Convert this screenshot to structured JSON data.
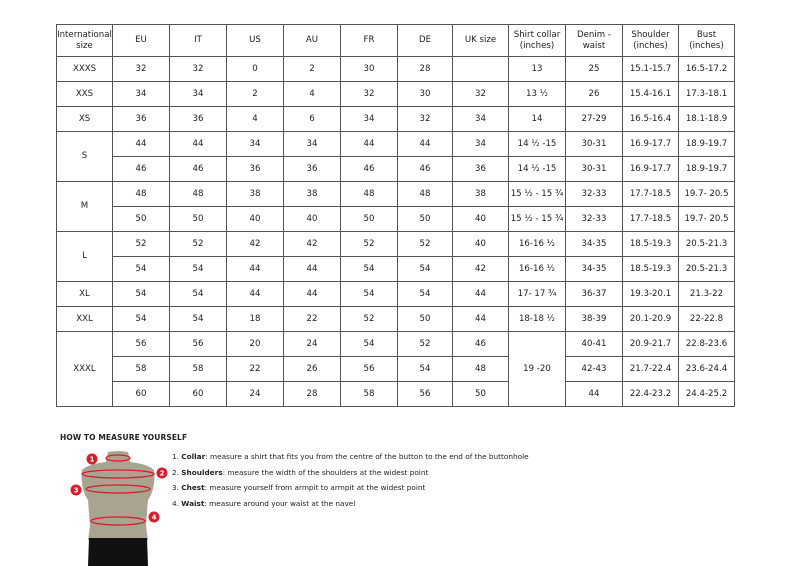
{
  "headers": [
    "International size",
    "EU",
    "IT",
    "US",
    "AU",
    "FR",
    "DE",
    "UK size",
    "Shirt collar (inches)",
    "Denim - waist",
    "Shoulder (inches)",
    "Bust (inches)"
  ],
  "groups": [
    {
      "size": "XXXS",
      "rows": [
        [
          "32",
          "32",
          "0",
          "2",
          "30",
          "28",
          "",
          "13",
          "25",
          "15.1-15.7",
          "16.5-17.2"
        ]
      ]
    },
    {
      "size": "XXS",
      "rows": [
        [
          "34",
          "34",
          "2",
          "4",
          "32",
          "30",
          "32",
          "13 ½",
          "26",
          "15.4-16.1",
          "17.3-18.1"
        ]
      ]
    },
    {
      "size": "XS",
      "rows": [
        [
          "36",
          "36",
          "4",
          "6",
          "34",
          "32",
          "34",
          "14",
          "27-29",
          "16.5-16.4",
          "18.1-18.9"
        ]
      ]
    },
    {
      "size": "S",
      "rows": [
        [
          "44",
          "44",
          "34",
          "34",
          "44",
          "44",
          "34",
          "14 ½ -15",
          "30-31",
          "16.9-17.7",
          "18.9-19.7"
        ],
        [
          "46",
          "46",
          "36",
          "36",
          "46",
          "46",
          "36",
          "14 ½ -15",
          "30-31",
          "16.9-17.7",
          "18.9-19.7"
        ]
      ]
    },
    {
      "size": "M",
      "rows": [
        [
          "48",
          "48",
          "38",
          "38",
          "48",
          "48",
          "38",
          "15 ½ - 15 ¾",
          "32-33",
          "17.7-18.5",
          "19.7- 20.5"
        ],
        [
          "50",
          "50",
          "40",
          "40",
          "50",
          "50",
          "40",
          "15 ½ - 15 ¾",
          "32-33",
          "17.7-18.5",
          "19.7- 20.5"
        ]
      ]
    },
    {
      "size": "L",
      "rows": [
        [
          "52",
          "52",
          "42",
          "42",
          "52",
          "52",
          "40",
          "16-16 ½",
          "34-35",
          "18.5-19.3",
          "20.5-21.3"
        ],
        [
          "54",
          "54",
          "44",
          "44",
          "54",
          "54",
          "42",
          "16-16 ½",
          "34-35",
          "18.5-19.3",
          "20.5-21.3"
        ]
      ]
    },
    {
      "size": "XL",
      "rows": [
        [
          "54",
          "54",
          "44",
          "44",
          "54",
          "54",
          "44",
          "17- 17 ¾",
          "36-37",
          "19.3-20.1",
          "21.3-22"
        ]
      ]
    },
    {
      "size": "XXL",
      "rows": [
        [
          "54",
          "54",
          "18",
          "22",
          "52",
          "50",
          "44",
          "18-18 ½",
          "38-39",
          "20.1-20.9",
          "22-22.8"
        ]
      ]
    },
    {
      "size": "XXXL",
      "collar_merged": "19 -20",
      "rows": [
        [
          "56",
          "56",
          "20",
          "24",
          "54",
          "52",
          "46",
          null,
          "40-41",
          "20.9-21.7",
          "22.8-23.6"
        ],
        [
          "58",
          "58",
          "22",
          "26",
          "56",
          "54",
          "48",
          null,
          "42-43",
          "21.7-22.4",
          "23.6-24.4"
        ],
        [
          "60",
          "60",
          "24",
          "28",
          "58",
          "56",
          "50",
          null,
          "44",
          "22.4-23.2",
          "24.4-25.2"
        ]
      ]
    }
  ],
  "guide": {
    "title": "HOW TO MEASURE YOURSELF",
    "steps": [
      {
        "num": "1.",
        "term": "Collar",
        "text": ": measure a shirt that fits you from the centre of the button to the end of the buttonhole"
      },
      {
        "num": "2.",
        "term": "Shoulders",
        "text": ": measure the width of the shoulders at the widest point"
      },
      {
        "num": "3.",
        "term": "Chest",
        "text": ": measure yourself from armpit to armpit at the widest point"
      },
      {
        "num": "4.",
        "term": "Waist",
        "text": ": measure around your waist at the navel"
      }
    ],
    "markers": [
      "1",
      "2",
      "3",
      "4"
    ],
    "colors": {
      "marker": "#d81e2c",
      "torso": "#a9a38f",
      "shorts": "#111111"
    }
  }
}
